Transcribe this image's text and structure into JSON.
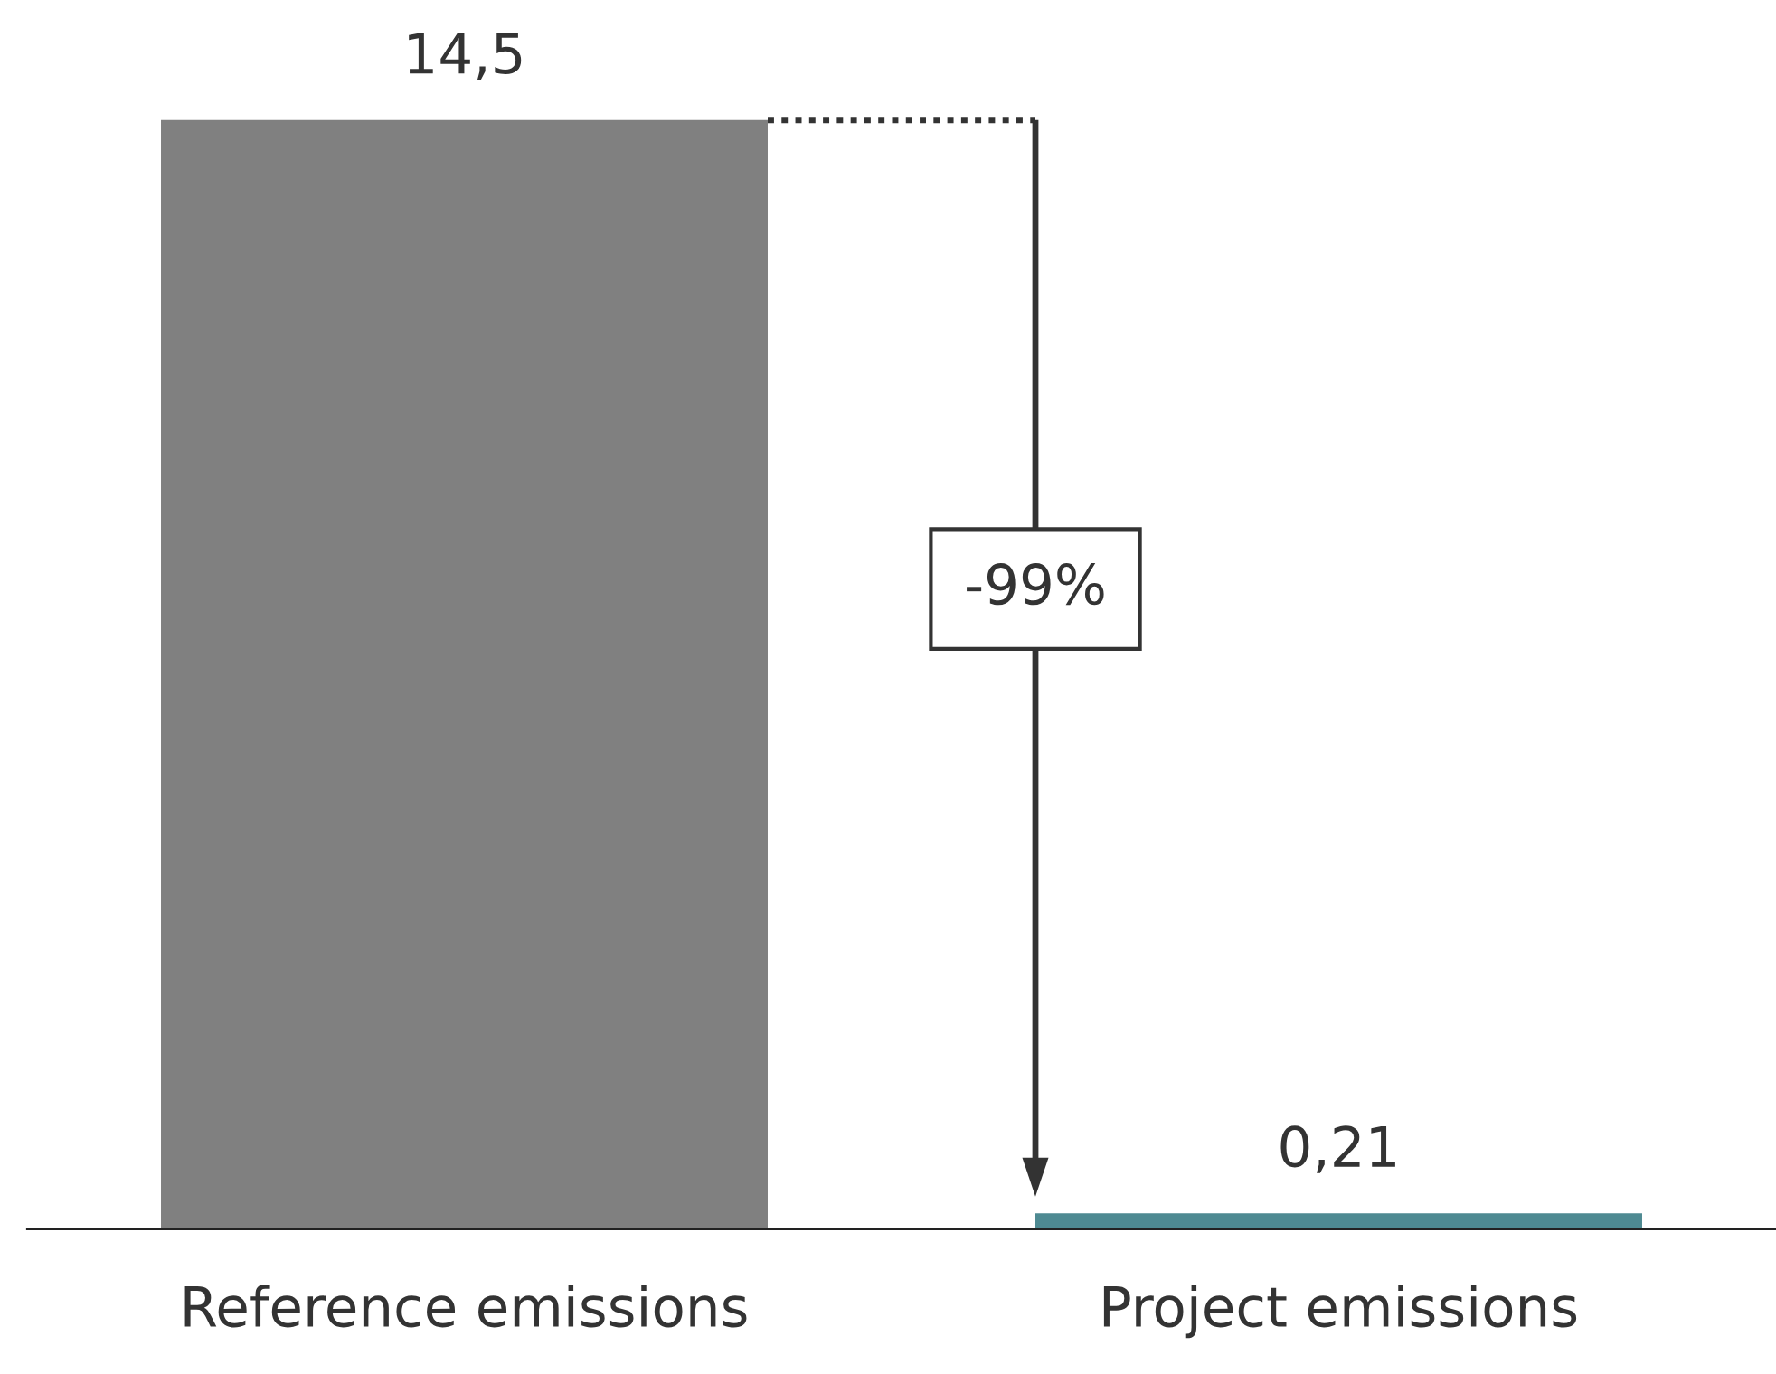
{
  "chart_data": {
    "type": "bar",
    "categories": [
      "Reference emissions",
      "Project emissions"
    ],
    "values": [
      14.5,
      0.21
    ],
    "colors": [
      "#808080",
      "#4e8a92"
    ],
    "value_labels": [
      "14,5",
      "0,21"
    ],
    "annotations": [
      "-99%"
    ],
    "grid": false,
    "legend": false
  }
}
